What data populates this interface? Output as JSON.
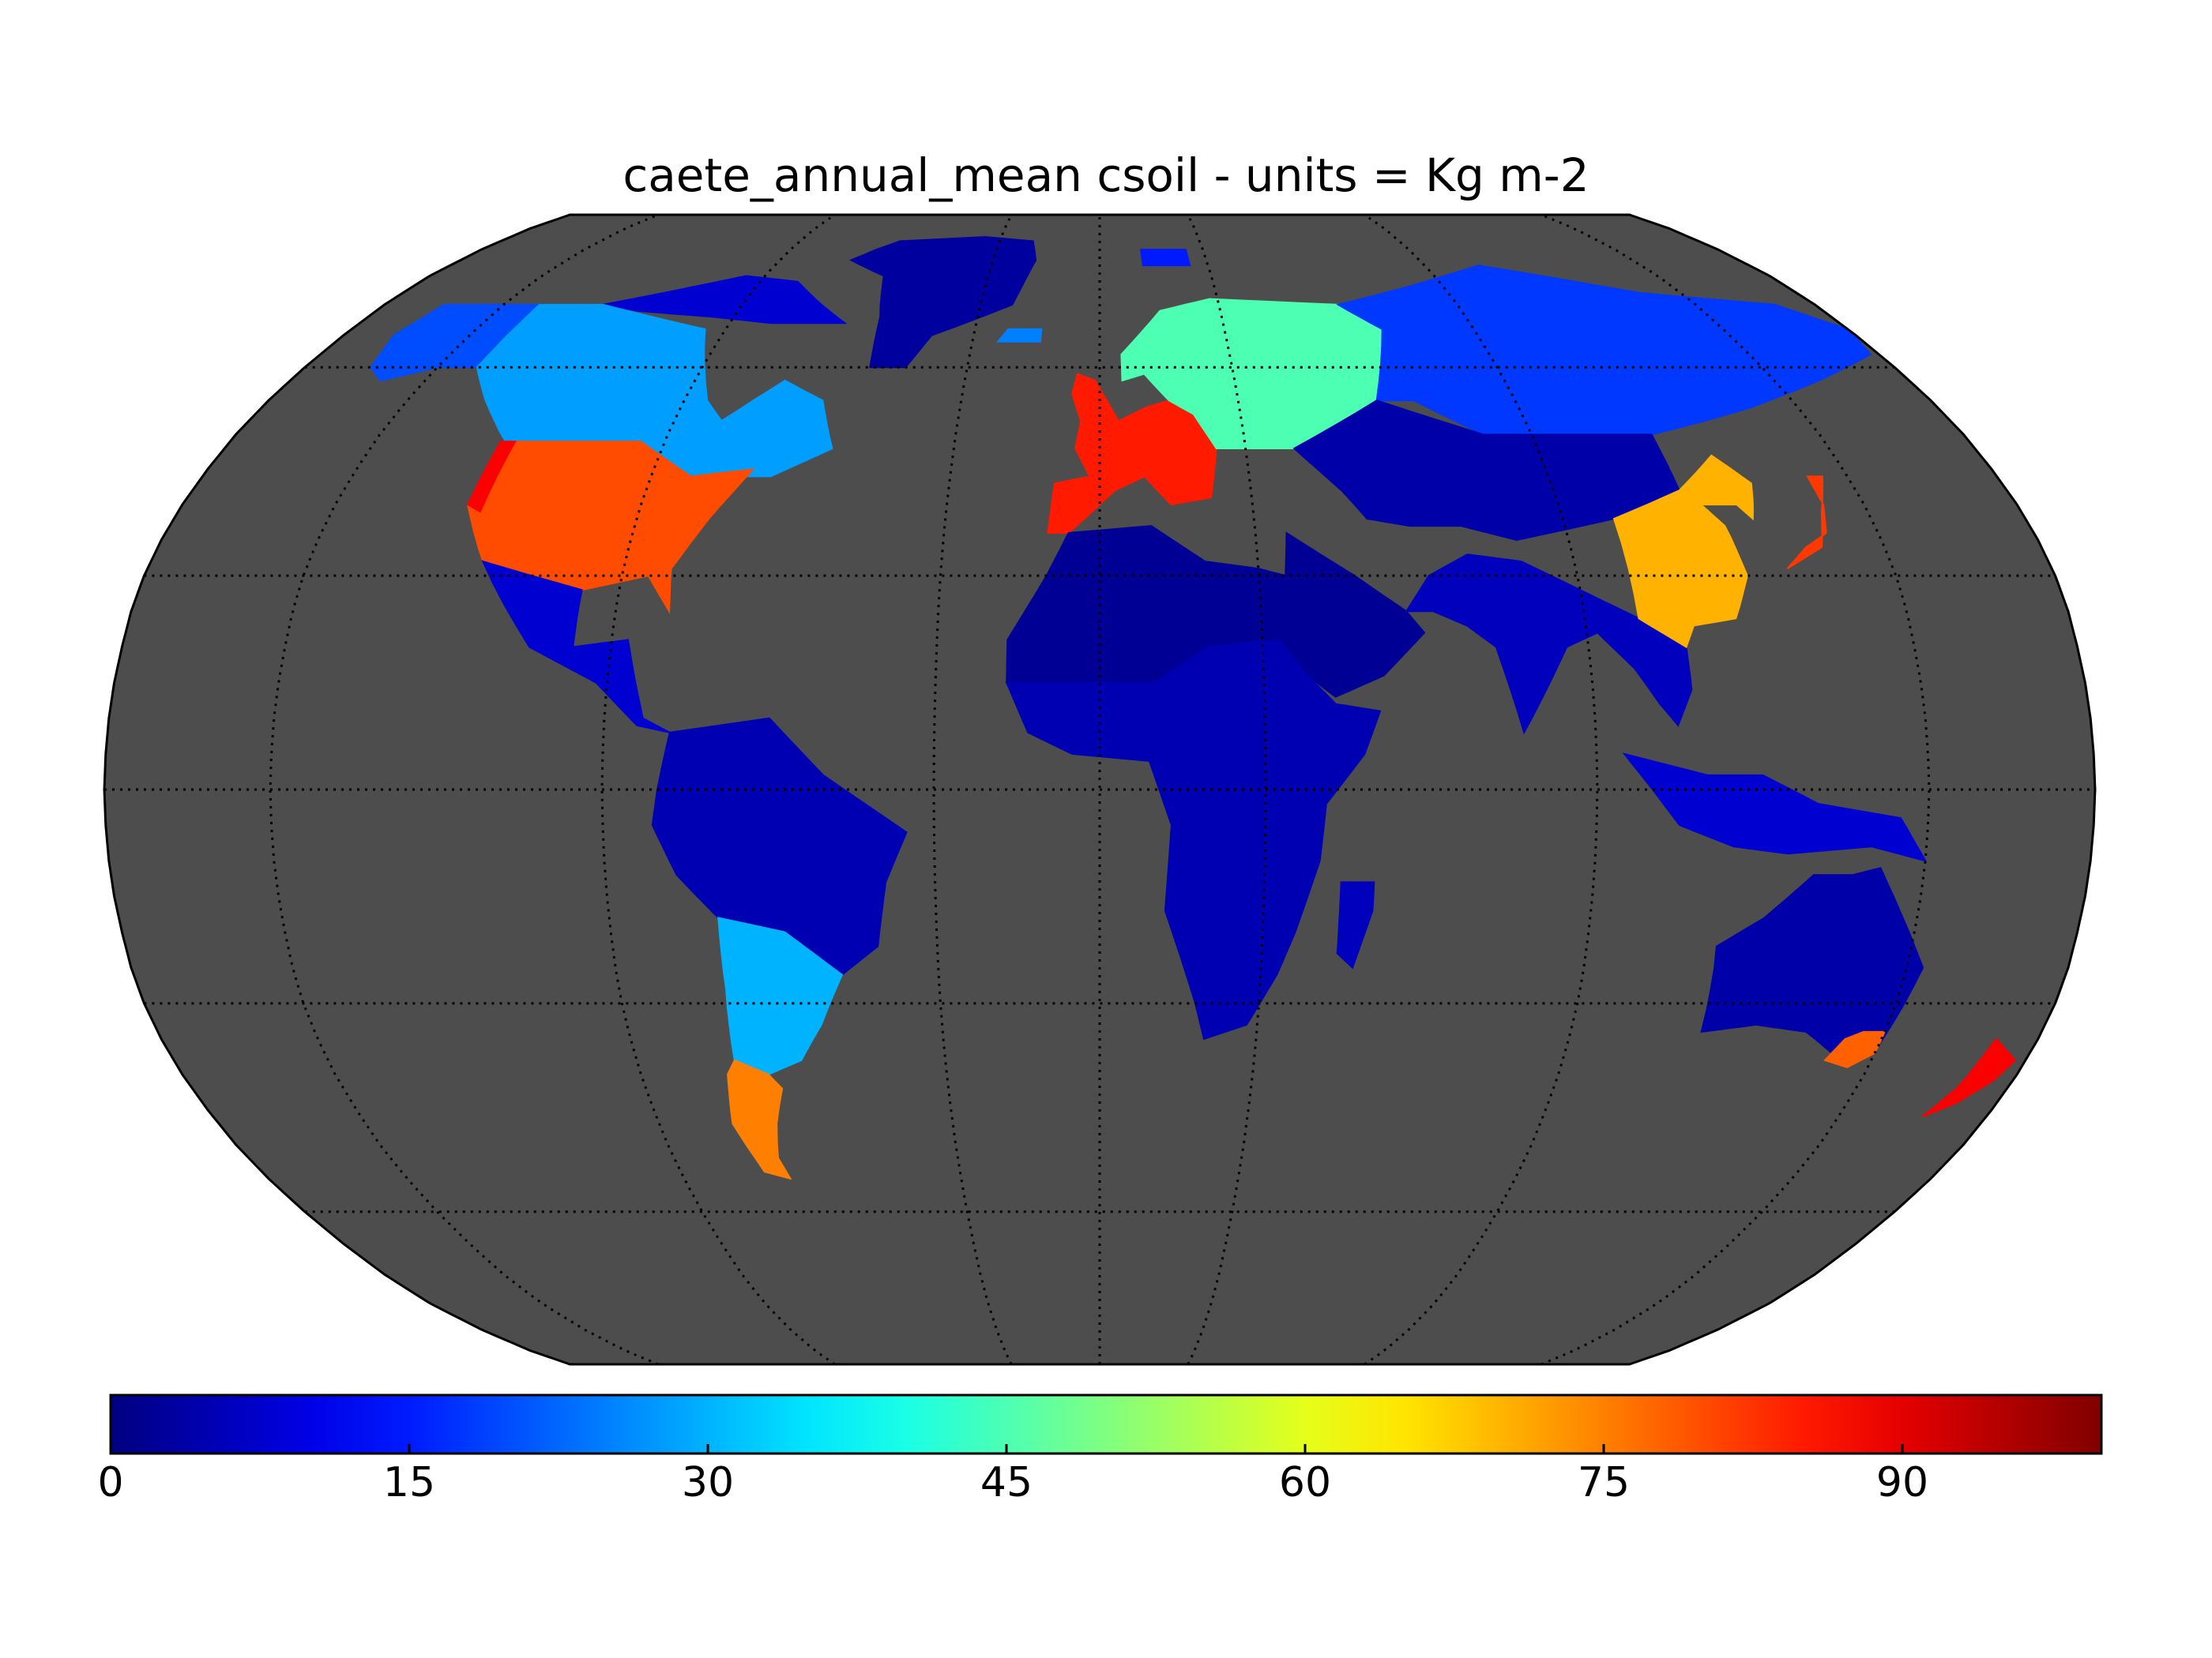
{
  "title": "caete_annual_mean csoil - units = Kg m-2",
  "map": {
    "projection": "robinson",
    "background_color": "#4d4d4d",
    "graticule": "dotted",
    "parallels_deg": [
      -60,
      -30,
      0,
      30,
      60
    ],
    "meridians_deg": [
      -150,
      -90,
      -30,
      30,
      90,
      150
    ]
  },
  "colorbar": {
    "colormap": "jet",
    "min": 0,
    "max": 100,
    "ticks": [
      "0",
      "15",
      "30",
      "45",
      "60",
      "75",
      "90"
    ],
    "tick_values": [
      0,
      15,
      30,
      45,
      60,
      75,
      90
    ]
  },
  "regions": [
    {
      "name": "Greenland",
      "value": 3
    },
    {
      "name": "Arctic Canada",
      "value": 8
    },
    {
      "name": "Alaska",
      "value": 20
    },
    {
      "name": "Canada boreal",
      "value": 28
    },
    {
      "name": "Eastern United States",
      "value": 80
    },
    {
      "name": "Pacific Northwest",
      "value": 88
    },
    {
      "name": "Western Europe",
      "value": 85
    },
    {
      "name": "Scandinavia and Russia west",
      "value": 45
    },
    {
      "name": "Siberia",
      "value": 18
    },
    {
      "name": "Eastern China",
      "value": 70
    },
    {
      "name": "Japan",
      "value": 82
    },
    {
      "name": "Sahara and Arabia",
      "value": 2
    },
    {
      "name": "Tropical Africa",
      "value": 5
    },
    {
      "name": "Amazon",
      "value": 5
    },
    {
      "name": "Southern Patagonia",
      "value": 75
    },
    {
      "name": "Pampas",
      "value": 30
    },
    {
      "name": "Australia",
      "value": 4
    },
    {
      "name": "Southeast Australia",
      "value": 78
    },
    {
      "name": "New Zealand",
      "value": 88
    }
  ]
}
